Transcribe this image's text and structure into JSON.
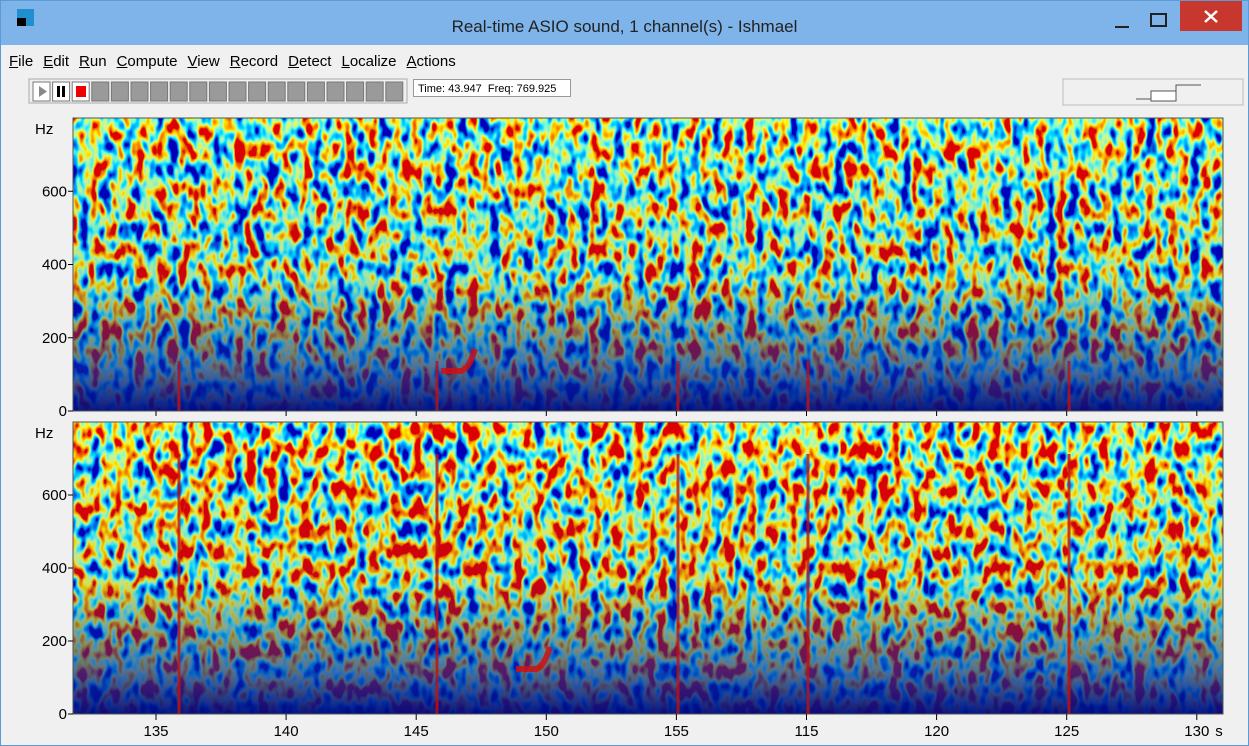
{
  "window": {
    "title": "Real-time ASIO sound, 1 channel(s) - Ishmael"
  },
  "menu": [
    "File",
    "Edit",
    "Run",
    "Compute",
    "View",
    "Record",
    "Detect",
    "Localize",
    "Actions"
  ],
  "status": {
    "time": "Time: 43.947",
    "freq": "Freq: 769.925"
  },
  "panels": [
    {
      "y_unit": "Hz",
      "yticks": [
        "0",
        "200",
        "400",
        "600"
      ]
    },
    {
      "y_unit": "Hz",
      "yticks": [
        "0",
        "200",
        "400",
        "600"
      ]
    }
  ],
  "x_axis": {
    "ticks": [
      "135",
      "140",
      "145",
      "150",
      "155",
      "115",
      "120",
      "125",
      "130"
    ],
    "unit": "s"
  }
}
